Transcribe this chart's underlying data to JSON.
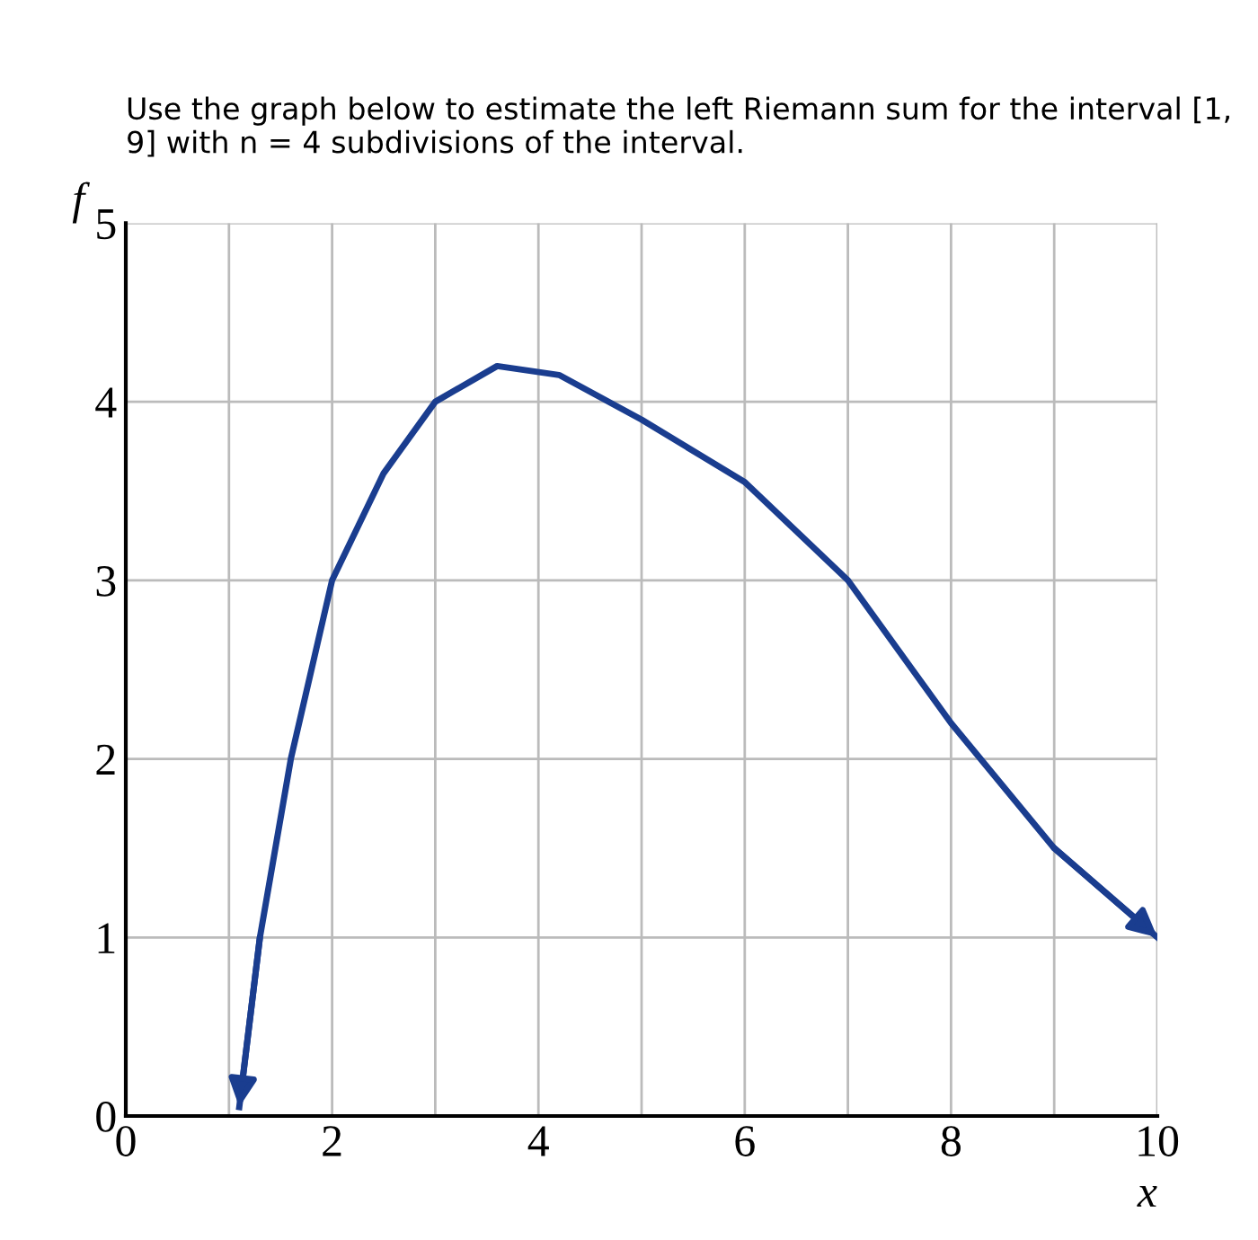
{
  "chart_data": {
    "type": "line",
    "title": "Use the graph below to estimate the left Riemann sum for the interval [1, 9] with n = 4 subdivisions of the interval.",
    "xlabel": "x",
    "ylabel": "f",
    "series": [
      {
        "color": "#1a3d8f",
        "x": [
          1.1,
          1.3,
          1.6,
          2.0,
          2.5,
          3.0,
          3.6,
          4.2,
          5.0,
          6.0,
          7.0,
          8.0,
          9.0,
          10.0
        ],
        "values": [
          0.05,
          1.0,
          2.0,
          3.0,
          3.6,
          4.0,
          4.2,
          4.15,
          3.9,
          3.55,
          3.0,
          2.2,
          1.5,
          1.0
        ]
      }
    ],
    "xlim": [
      0,
      10
    ],
    "ylim": [
      0,
      5
    ],
    "xticks": [
      0,
      {
        "value": 1,
        "label": null
      },
      2,
      {
        "value": 3,
        "label": null
      },
      4,
      {
        "value": 5,
        "label": null
      },
      6,
      {
        "value": 7,
        "label": null
      },
      8,
      {
        "value": 9,
        "label": null
      },
      10
    ],
    "yticks": [
      0,
      1,
      2,
      3,
      4,
      5
    ],
    "grid": true,
    "marker": "none",
    "line_style": "solid",
    "legend": false
  }
}
